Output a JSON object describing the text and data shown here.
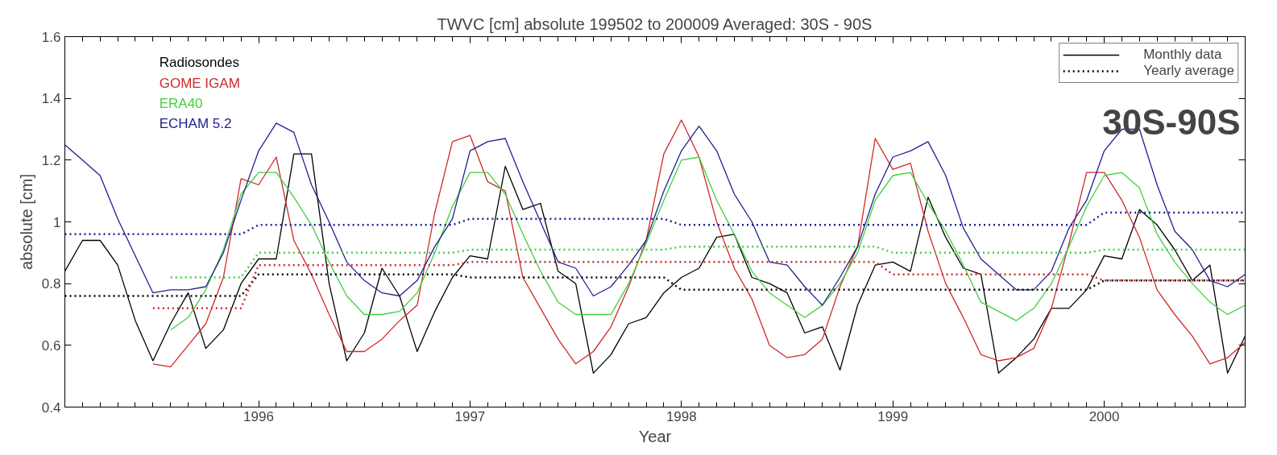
{
  "chart_data": {
    "type": "line",
    "title": "TWVC [cm] absolute 199502 to 200009 Averaged: 30S - 90S",
    "xlabel": "Year",
    "ylabel": "absolute [cm]",
    "x": [
      "1995-02",
      "1995-03",
      "1995-04",
      "1995-05",
      "1995-06",
      "1995-07",
      "1995-08",
      "1995-09",
      "1995-10",
      "1995-11",
      "1995-12",
      "1996-01",
      "1996-02",
      "1996-03",
      "1996-04",
      "1996-05",
      "1996-06",
      "1996-07",
      "1996-08",
      "1996-09",
      "1996-10",
      "1996-11",
      "1996-12",
      "1997-01",
      "1997-02",
      "1997-03",
      "1997-04",
      "1997-05",
      "1997-06",
      "1997-07",
      "1997-08",
      "1997-09",
      "1997-10",
      "1997-11",
      "1997-12",
      "1998-01",
      "1998-02",
      "1998-03",
      "1998-04",
      "1998-05",
      "1998-06",
      "1998-07",
      "1998-08",
      "1998-09",
      "1998-10",
      "1998-11",
      "1998-12",
      "1999-01",
      "1999-02",
      "1999-03",
      "1999-04",
      "1999-05",
      "1999-06",
      "1999-07",
      "1999-08",
      "1999-09",
      "1999-10",
      "1999-11",
      "1999-12",
      "2000-01",
      "2000-02",
      "2000-03",
      "2000-04",
      "2000-05",
      "2000-06",
      "2000-07",
      "2000-08",
      "2000-09"
    ],
    "series": [
      {
        "name": "Radiosondes",
        "color": "#000000",
        "line_style": "solid",
        "values": [
          0.84,
          0.94,
          0.94,
          0.86,
          0.68,
          0.55,
          0.67,
          0.77,
          0.59,
          0.65,
          0.8,
          0.88,
          0.88,
          1.22,
          1.22,
          0.8,
          0.55,
          0.64,
          0.85,
          0.76,
          0.58,
          0.71,
          0.82,
          0.89,
          0.88,
          1.18,
          1.04,
          1.06,
          0.84,
          0.8,
          0.51,
          0.57,
          0.67,
          0.69,
          0.77,
          0.82,
          0.85,
          0.95,
          0.96,
          0.82,
          0.8,
          0.77,
          0.64,
          0.66,
          0.52,
          0.73,
          0.86,
          0.87,
          0.84,
          1.08,
          0.95,
          0.85,
          0.83,
          0.51,
          0.56,
          0.62,
          0.72,
          0.72,
          0.78,
          0.89,
          0.88,
          1.04,
          0.99,
          0.91,
          0.81,
          0.86,
          0.51,
          0.63
        ]
      },
      {
        "name": "GOME IGAM",
        "color": "#d02828",
        "line_style": "solid",
        "values": [
          null,
          null,
          null,
          null,
          null,
          0.54,
          0.53,
          0.6,
          0.67,
          0.82,
          1.14,
          1.12,
          1.21,
          0.94,
          0.83,
          0.7,
          0.58,
          0.58,
          0.62,
          0.68,
          0.73,
          1.03,
          1.26,
          1.28,
          1.13,
          1.1,
          0.82,
          0.72,
          0.62,
          0.54,
          0.58,
          0.66,
          0.79,
          0.94,
          1.22,
          1.33,
          1.21,
          1.0,
          0.85,
          0.75,
          0.6,
          0.56,
          0.57,
          0.62,
          0.79,
          0.92,
          1.27,
          1.17,
          1.19,
          0.97,
          0.8,
          0.69,
          0.57,
          0.55,
          0.56,
          0.59,
          0.72,
          0.93,
          1.16,
          1.16,
          1.07,
          0.95,
          0.78,
          0.7,
          0.63,
          0.54,
          0.56,
          0.61
        ]
      },
      {
        "name": "ERA40",
        "color": "#40d040",
        "line_style": "solid",
        "values": [
          null,
          null,
          null,
          null,
          null,
          null,
          0.65,
          0.69,
          0.78,
          0.91,
          1.09,
          1.16,
          1.16,
          1.08,
          0.99,
          0.87,
          0.76,
          0.7,
          0.7,
          0.71,
          0.77,
          0.9,
          1.05,
          1.16,
          1.16,
          1.09,
          0.96,
          0.84,
          0.74,
          0.7,
          0.7,
          0.7,
          0.8,
          0.93,
          1.07,
          1.2,
          1.21,
          1.07,
          0.96,
          0.84,
          0.77,
          0.73,
          0.69,
          0.73,
          0.8,
          0.9,
          1.07,
          1.15,
          1.16,
          1.06,
          0.97,
          0.86,
          0.74,
          0.71,
          0.68,
          0.72,
          0.8,
          0.92,
          1.05,
          1.15,
          1.16,
          1.11,
          0.96,
          0.87,
          0.8,
          0.74,
          0.7,
          0.73
        ]
      },
      {
        "name": "ECHAM 5.2",
        "color": "#202090",
        "line_style": "solid",
        "values": [
          1.25,
          1.2,
          1.15,
          1.01,
          0.89,
          0.77,
          0.78,
          0.78,
          0.79,
          0.9,
          1.07,
          1.23,
          1.32,
          1.29,
          1.12,
          1.0,
          0.87,
          0.81,
          0.77,
          0.76,
          0.81,
          0.92,
          1.01,
          1.23,
          1.26,
          1.27,
          1.13,
          1.0,
          0.87,
          0.85,
          0.76,
          0.79,
          0.86,
          0.94,
          1.1,
          1.23,
          1.31,
          1.23,
          1.09,
          1.0,
          0.87,
          0.86,
          0.79,
          0.73,
          0.82,
          0.92,
          1.09,
          1.21,
          1.23,
          1.26,
          1.15,
          0.98,
          0.88,
          0.83,
          0.78,
          0.78,
          0.84,
          0.98,
          1.07,
          1.23,
          1.3,
          1.3,
          1.12,
          0.97,
          0.91,
          0.81,
          0.79,
          0.83
        ]
      },
      {
        "color": "#000000",
        "line_style": "dotted",
        "x": [
          "1995-02",
          "1995-12",
          "1996-01",
          "1996-12",
          "1997-01",
          "1997-12",
          "1998-01",
          "1998-12",
          "1999-01",
          "1999-12",
          "2000-01",
          "2000-09"
        ],
        "values": [
          0.76,
          0.76,
          0.83,
          0.83,
          0.82,
          0.82,
          0.78,
          0.78,
          0.78,
          0.78,
          0.81,
          0.81
        ]
      },
      {
        "color": "#d02828",
        "line_style": "dotted",
        "x": [
          "1995-07",
          "1995-12",
          "1996-01",
          "1996-12",
          "1997-01",
          "1997-12",
          "1998-01",
          "1998-12",
          "1999-01",
          "1999-12",
          "2000-01",
          "2000-09"
        ],
        "values": [
          0.72,
          0.72,
          0.86,
          0.86,
          0.87,
          0.87,
          0.87,
          0.87,
          0.83,
          0.83,
          0.81,
          0.81
        ]
      },
      {
        "color": "#40d040",
        "line_style": "dotted",
        "x": [
          "1995-08",
          "1995-12",
          "1996-01",
          "1996-12",
          "1997-01",
          "1997-12",
          "1998-01",
          "1998-12",
          "1999-01",
          "1999-12",
          "2000-01",
          "2000-09"
        ],
        "values": [
          0.82,
          0.82,
          0.9,
          0.9,
          0.91,
          0.91,
          0.92,
          0.92,
          0.9,
          0.9,
          0.91,
          0.91
        ]
      },
      {
        "color": "#202090",
        "line_style": "dotted",
        "x": [
          "1995-02",
          "1995-12",
          "1996-01",
          "1996-12",
          "1997-01",
          "1997-12",
          "1998-01",
          "1998-12",
          "1999-01",
          "1999-12",
          "2000-01",
          "2000-09"
        ],
        "values": [
          0.96,
          0.96,
          0.99,
          0.99,
          1.01,
          1.01,
          0.99,
          0.99,
          0.99,
          0.99,
          1.03,
          1.03
        ]
      }
    ],
    "xlim": [
      "1995-02",
      "2000-09"
    ],
    "xticks": [
      "1996",
      "1997",
      "1998",
      "1999",
      "2000"
    ],
    "ylim": [
      0.4,
      1.6
    ],
    "yticks": [
      0.4,
      0.6,
      0.8,
      1,
      1.2,
      1.4,
      1.6
    ],
    "grid": false,
    "legend": "top left",
    "annotations": [
      "Monthly data",
      "Yearly average",
      "30S-90S"
    ]
  }
}
